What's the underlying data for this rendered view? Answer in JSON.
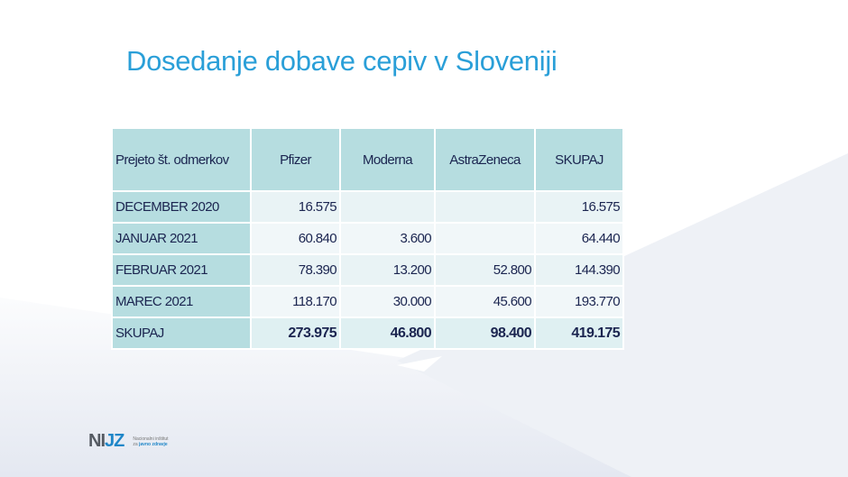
{
  "title": "Dosedanje dobave cepiv v Sloveniji",
  "table": {
    "headers": [
      "Prejeto št. odmerkov",
      "Pfizer",
      "Moderna",
      "AstraZeneca",
      "SKUPAJ"
    ],
    "rows": [
      [
        "DECEMBER 2020",
        "16.575",
        "",
        "",
        "16.575"
      ],
      [
        "JANUAR 2021",
        "60.840",
        "3.600",
        "",
        "64.440"
      ],
      [
        "FEBRUAR 2021",
        "78.390",
        "13.200",
        "52.800",
        "144.390"
      ],
      [
        "MAREC 2021",
        "118.170",
        "30.000",
        "45.600",
        "193.770"
      ],
      [
        "SKUPAJ",
        "273.975",
        "46.800",
        "98.400",
        "419.175"
      ]
    ]
  },
  "logo": {
    "mark_a": "NI",
    "mark_b": "JZ",
    "line1": "Nacionalni inštitut",
    "line2a": "za",
    "line2b": "javno zdravje"
  },
  "colors": {
    "title": "#2a9fd8",
    "header_fill": "#b6dde0",
    "text": "#1b2550"
  }
}
